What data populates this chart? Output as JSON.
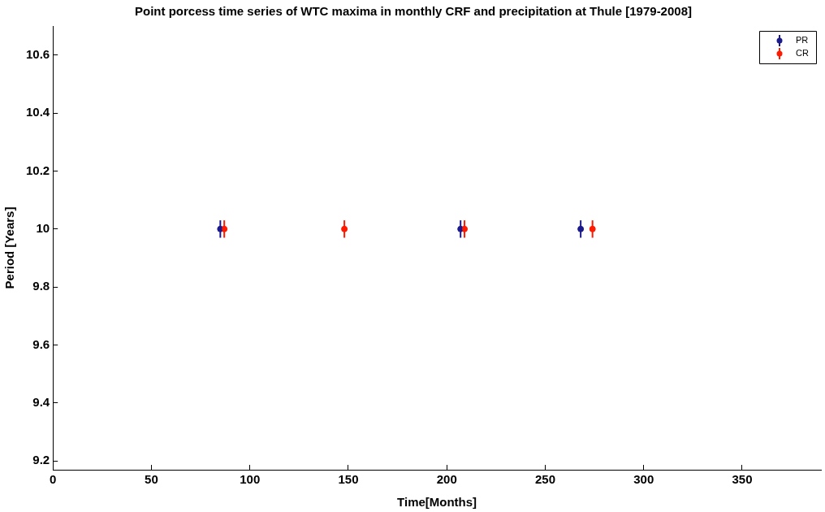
{
  "chart_data": {
    "type": "scatter",
    "title": "Point porcess time series of WTC maxima in monthly CRF and precipitation at Thule [1979-2008]",
    "xlabel": "Time[Months]",
    "ylabel": "Period [Years]",
    "series": [
      {
        "name": "PR",
        "color": "#1a1a8c",
        "x": [
          85,
          207,
          268
        ],
        "values": [
          10,
          10,
          10
        ],
        "errors": [
          0.03,
          0.03,
          0.03
        ]
      },
      {
        "name": "CR",
        "color": "#ff1a00",
        "x": [
          87,
          148,
          209,
          274
        ],
        "values": [
          10,
          10,
          10,
          10
        ],
        "errors": [
          0.03,
          0.03,
          0.03,
          0.03
        ]
      }
    ],
    "xlim": [
      0,
      390
    ],
    "xticks": [
      0,
      50,
      100,
      150,
      200,
      250,
      300,
      350
    ],
    "ylim": [
      9.17,
      10.7
    ],
    "yticks": [
      9.2,
      9.4,
      9.6,
      9.8,
      10,
      10.2,
      10.4,
      10.6
    ],
    "grid": false,
    "legend": "top right",
    "marker": "circle"
  }
}
